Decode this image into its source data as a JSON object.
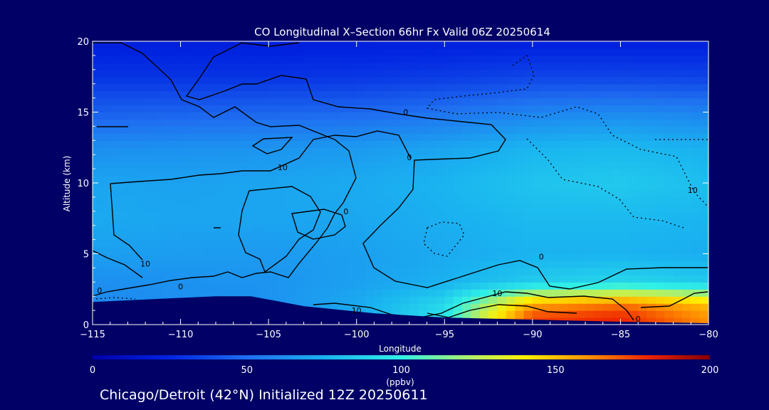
{
  "colors": {
    "background": "#000066",
    "text": "#ffffff",
    "contour": "#000000",
    "terrain": "#000066"
  },
  "chart_data": {
    "type": "heatmap",
    "title": "CO Longitudinal X–Section 66hr  Fx Valid 06Z 20250614",
    "xlabel": "Longitude",
    "ylabel": "Altitude (km)",
    "xlim": [
      -115,
      -80
    ],
    "ylim": [
      0,
      20
    ],
    "x_ticks": [
      -115,
      -110,
      -105,
      -100,
      -95,
      -90,
      -85,
      -80
    ],
    "x_tick_labels": [
      "−115",
      "−110",
      "−105",
      "−100",
      "−95",
      "−90",
      "−85",
      "−80"
    ],
    "y_ticks": [
      0,
      5,
      10,
      15,
      20
    ],
    "y_tick_labels": [
      "0",
      "5",
      "10",
      "15",
      "20"
    ],
    "x": [
      -115,
      -110,
      -105,
      -100,
      -95,
      -90,
      -85,
      -80
    ],
    "y": [
      0.5,
      1.5,
      3,
      5,
      7.5,
      10,
      12.5,
      15,
      17.5,
      20
    ],
    "z_ppbv": [
      [
        55,
        57,
        60,
        70,
        95,
        175,
        180,
        160
      ],
      [
        60,
        62,
        63,
        72,
        90,
        155,
        165,
        150
      ],
      [
        62,
        63,
        64,
        68,
        75,
        85,
        90,
        85
      ],
      [
        68,
        67,
        66,
        68,
        72,
        75,
        75,
        73
      ],
      [
        72,
        70,
        70,
        71,
        74,
        78,
        78,
        76
      ],
      [
        70,
        69,
        70,
        72,
        76,
        82,
        84,
        80
      ],
      [
        62,
        63,
        64,
        66,
        70,
        76,
        78,
        74
      ],
      [
        45,
        46,
        47,
        48,
        52,
        58,
        60,
        58
      ],
      [
        30,
        30,
        30,
        31,
        33,
        36,
        36,
        35
      ],
      [
        22,
        22,
        22,
        22,
        22,
        22,
        22,
        22
      ]
    ],
    "terrain_km": [
      {
        "lon": -115,
        "alt": 1.6
      },
      {
        "lon": -108,
        "alt": 2.0
      },
      {
        "lon": -106,
        "alt": 2.0
      },
      {
        "lon": -103,
        "alt": 1.3
      },
      {
        "lon": -99,
        "alt": 0.8
      },
      {
        "lon": -95,
        "alt": 0.5
      },
      {
        "lon": -90,
        "alt": 0.35
      },
      {
        "lon": -85,
        "alt": 0.2
      },
      {
        "lon": -80,
        "alt": 0.1
      }
    ],
    "contour_labels": [
      {
        "text": "10",
        "lon": -112,
        "alt": 4.1
      },
      {
        "text": "0",
        "lon": -114.6,
        "alt": 2.2
      },
      {
        "text": "0",
        "lon": -110,
        "alt": 2.5
      },
      {
        "text": "10",
        "lon": -104.2,
        "alt": 10.9
      },
      {
        "text": "0",
        "lon": -97,
        "alt": 11.6
      },
      {
        "text": "0",
        "lon": -97.2,
        "alt": 14.8
      },
      {
        "text": "0",
        "lon": -100.6,
        "alt": 7.8
      },
      {
        "text": "0",
        "lon": -89.5,
        "alt": 4.6
      },
      {
        "text": "10",
        "lon": -92,
        "alt": 2.0
      },
      {
        "text": "10",
        "lon": -100,
        "alt": 0.8
      },
      {
        "text": "0",
        "lon": -84,
        "alt": 0.2
      },
      {
        "text": "10",
        "lon": -80.9,
        "alt": 9.3
      }
    ],
    "colorbar": {
      "range": [
        0,
        200
      ],
      "ticks": [
        0,
        50,
        100,
        150,
        200
      ],
      "units": "(ppbv)"
    },
    "footer": "Chicago/Detroit (42°N) Initialized 12Z 20250611",
    "grid": false,
    "legend": "colorbar-bottom"
  }
}
